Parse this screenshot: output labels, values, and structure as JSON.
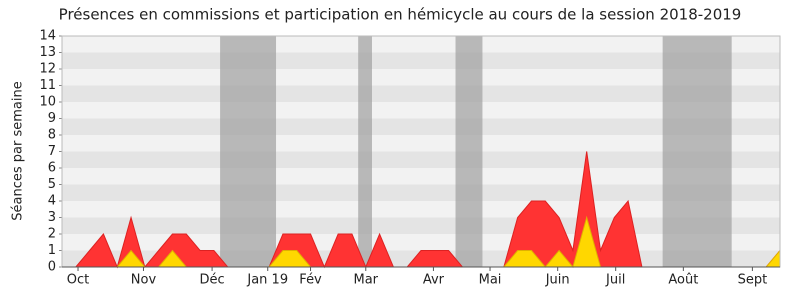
{
  "chart_data": {
    "type": "area",
    "title": "Présences en commissions et participation en hémicycle au cours de la session 2018-2019",
    "y_label": "Séances par semaine",
    "x": [
      0,
      1,
      2,
      3,
      4,
      5,
      6,
      7,
      8,
      9,
      10,
      11,
      12,
      13,
      14,
      15,
      16,
      17,
      18,
      19,
      20,
      21,
      22,
      23,
      24,
      25,
      26,
      27,
      28,
      29,
      30,
      31,
      32,
      33,
      34,
      35,
      36,
      37,
      38,
      39,
      40,
      41,
      42,
      43,
      44,
      45,
      46,
      47,
      48,
      49,
      50,
      51,
      52
    ],
    "series": [
      {
        "color": "#ff3333",
        "values": [
          0,
          0,
          1,
          2,
          0,
          3,
          0,
          1,
          2,
          2,
          1,
          1,
          0,
          0,
          0,
          0,
          2,
          2,
          2,
          0,
          2,
          2,
          0,
          2,
          0,
          0,
          1,
          1,
          1,
          0,
          0,
          0,
          0,
          3,
          4,
          4,
          3,
          1,
          7,
          1,
          3,
          4,
          0,
          0,
          0,
          0,
          0,
          0,
          0,
          0,
          0,
          0,
          1
        ]
      },
      {
        "color": "#ffd700",
        "values": [
          0,
          0,
          0,
          0,
          0,
          1,
          0,
          0,
          1,
          0,
          0,
          0,
          0,
          0,
          0,
          0,
          1,
          1,
          0,
          0,
          0,
          0,
          0,
          0,
          0,
          0,
          0,
          0,
          0,
          0,
          0,
          0,
          0,
          1,
          1,
          0,
          1,
          0,
          3,
          0,
          0,
          0,
          0,
          0,
          0,
          0,
          0,
          0,
          0,
          0,
          0,
          0,
          1
        ]
      }
    ],
    "vacations": [
      [
        11.45,
        15.5
      ],
      [
        21.45,
        22.45
      ],
      [
        28.5,
        30.45
      ],
      [
        43.5,
        48.5
      ]
    ],
    "vacation_color": "#a0a0a0",
    "xlim": [
      0,
      52
    ],
    "xticks": [
      {
        "value": 1.16,
        "label": "Oct"
      },
      {
        "value": 5.9,
        "label": "Nov"
      },
      {
        "value": 10.87,
        "label": "Déc"
      },
      {
        "value": 14.9,
        "label": "Jan 19"
      },
      {
        "value": 18.0,
        "label": "Fév"
      },
      {
        "value": 22.0,
        "label": "Mar"
      },
      {
        "value": 26.9,
        "label": "Avr"
      },
      {
        "value": 31.0,
        "label": "Mai"
      },
      {
        "value": 35.9,
        "label": "Juin"
      },
      {
        "value": 40.1,
        "label": "Juil"
      },
      {
        "value": 45.0,
        "label": "Août"
      },
      {
        "value": 50.0,
        "label": "Sept"
      }
    ],
    "ylim": [
      0,
      14
    ],
    "yticks": [
      0,
      1,
      2,
      3,
      4,
      5,
      6,
      7,
      8,
      9,
      10,
      11,
      12,
      13,
      14
    ],
    "grid": true
  }
}
